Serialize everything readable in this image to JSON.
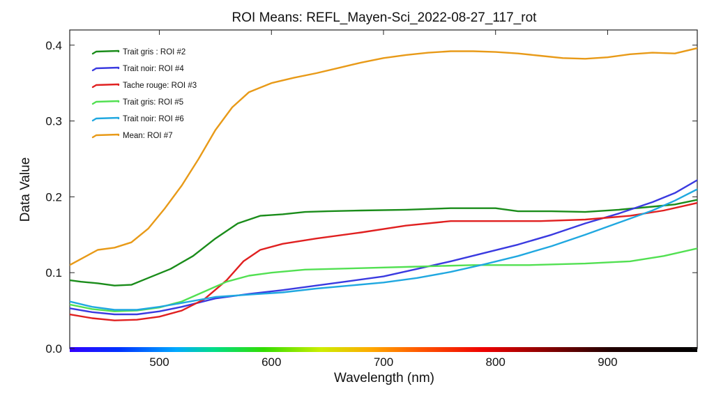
{
  "chart_data": {
    "type": "line",
    "title": "ROI Means: REFL_Mayen-Sci_2022-08-27_117_rot",
    "xlabel": "Wavelength (nm)",
    "ylabel": "Data Value",
    "xlim": [
      420,
      980
    ],
    "ylim": [
      0.0,
      0.42
    ],
    "xticks": [
      500,
      600,
      700,
      800,
      900
    ],
    "yticks": [
      0.0,
      0.1,
      0.2,
      0.3,
      0.4
    ],
    "xtick_labels": [
      "500",
      "600",
      "700",
      "800",
      "900"
    ],
    "ytick_labels": [
      "0.0",
      "0.1",
      "0.2",
      "0.3",
      "0.4"
    ],
    "grid": false,
    "legend_position": "top-left",
    "series": [
      {
        "name": "Trait gris : ROI #2",
        "color": "#1a8c1a",
        "x": [
          420,
          430,
          445,
          460,
          475,
          490,
          510,
          530,
          550,
          570,
          590,
          610,
          630,
          650,
          680,
          720,
          760,
          800,
          820,
          850,
          880,
          910,
          940,
          960,
          980
        ],
        "y": [
          0.09,
          0.088,
          0.086,
          0.083,
          0.084,
          0.093,
          0.105,
          0.122,
          0.145,
          0.165,
          0.175,
          0.177,
          0.18,
          0.181,
          0.182,
          0.183,
          0.185,
          0.185,
          0.181,
          0.181,
          0.18,
          0.183,
          0.187,
          0.19,
          0.196
        ]
      },
      {
        "name": "Trait noir: ROI #4",
        "color": "#3a3ae0",
        "x": [
          420,
          440,
          460,
          480,
          500,
          520,
          550,
          580,
          610,
          640,
          670,
          700,
          730,
          760,
          790,
          820,
          850,
          880,
          910,
          940,
          960,
          980
        ],
        "y": [
          0.053,
          0.048,
          0.045,
          0.045,
          0.049,
          0.055,
          0.066,
          0.072,
          0.077,
          0.083,
          0.089,
          0.095,
          0.105,
          0.115,
          0.126,
          0.137,
          0.15,
          0.165,
          0.178,
          0.193,
          0.205,
          0.222
        ]
      },
      {
        "name": "Tache rouge: ROI #3",
        "color": "#e02020",
        "x": [
          420,
          440,
          460,
          480,
          500,
          520,
          540,
          560,
          575,
          590,
          610,
          640,
          680,
          720,
          760,
          800,
          840,
          880,
          920,
          950,
          980
        ],
        "y": [
          0.045,
          0.04,
          0.037,
          0.038,
          0.042,
          0.05,
          0.065,
          0.09,
          0.115,
          0.13,
          0.138,
          0.145,
          0.153,
          0.162,
          0.168,
          0.168,
          0.168,
          0.17,
          0.175,
          0.182,
          0.192
        ]
      },
      {
        "name": "Trait gris: ROI #5",
        "color": "#52e052",
        "x": [
          420,
          440,
          460,
          480,
          500,
          520,
          540,
          560,
          580,
          600,
          630,
          680,
          730,
          780,
          830,
          880,
          920,
          950,
          980
        ],
        "y": [
          0.058,
          0.052,
          0.049,
          0.05,
          0.054,
          0.062,
          0.075,
          0.088,
          0.096,
          0.1,
          0.104,
          0.106,
          0.108,
          0.11,
          0.11,
          0.112,
          0.115,
          0.122,
          0.132
        ]
      },
      {
        "name": "Trait noir: ROI #6",
        "color": "#20a8e0",
        "x": [
          420,
          440,
          460,
          480,
          500,
          520,
          550,
          580,
          610,
          640,
          670,
          700,
          730,
          760,
          790,
          820,
          850,
          880,
          910,
          940,
          960,
          980
        ],
        "y": [
          0.062,
          0.055,
          0.051,
          0.051,
          0.055,
          0.06,
          0.068,
          0.071,
          0.074,
          0.079,
          0.083,
          0.087,
          0.093,
          0.101,
          0.111,
          0.122,
          0.135,
          0.15,
          0.166,
          0.182,
          0.195,
          0.21
        ]
      },
      {
        "name": "Mean: ROI #7",
        "color": "#e89a18",
        "x": [
          420,
          430,
          445,
          460,
          475,
          490,
          505,
          520,
          535,
          550,
          565,
          580,
          600,
          620,
          640,
          660,
          680,
          700,
          720,
          740,
          760,
          780,
          800,
          820,
          840,
          860,
          880,
          900,
          920,
          940,
          960,
          980
        ],
        "y": [
          0.11,
          0.118,
          0.13,
          0.133,
          0.14,
          0.158,
          0.185,
          0.215,
          0.25,
          0.288,
          0.318,
          0.338,
          0.35,
          0.357,
          0.363,
          0.37,
          0.377,
          0.383,
          0.387,
          0.39,
          0.392,
          0.392,
          0.391,
          0.389,
          0.386,
          0.383,
          0.382,
          0.384,
          0.388,
          0.39,
          0.389,
          0.396
        ]
      }
    ]
  }
}
